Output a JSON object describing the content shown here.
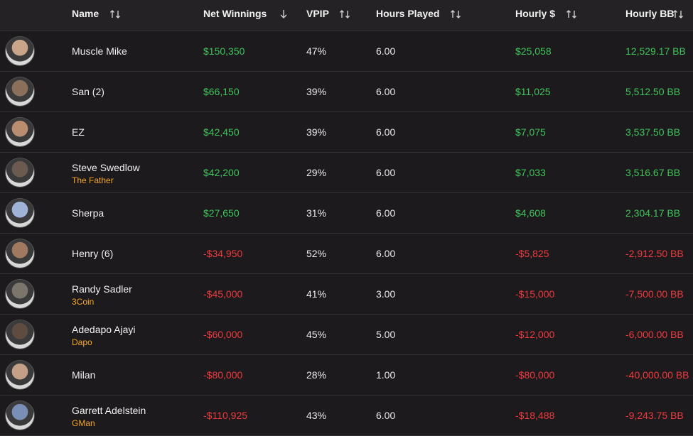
{
  "table": {
    "columns": [
      "Name",
      "Net Winnings",
      "VPIP",
      "Hours Played",
      "Hourly $",
      "Hourly BB"
    ],
    "rows": [
      {
        "name": "Muscle Mike",
        "net": "$150,350",
        "vpip": "47%",
        "hours": "6.00",
        "hourly": "$25,058",
        "hourly_bb": "12,529.17 BB",
        "positive": true
      },
      {
        "name": "San (2)",
        "net": "$66,150",
        "vpip": "39%",
        "hours": "6.00",
        "hourly": "$11,025",
        "hourly_bb": "5,512.50 BB",
        "positive": true
      },
      {
        "name": "EZ",
        "net": "$42,450",
        "vpip": "39%",
        "hours": "6.00",
        "hourly": "$7,075",
        "hourly_bb": "3,537.50 BB",
        "positive": true
      },
      {
        "name": "Steve Swedlow",
        "nickname": "The Father",
        "net": "$42,200",
        "vpip": "29%",
        "hours": "6.00",
        "hourly": "$7,033",
        "hourly_bb": "3,516.67 BB",
        "positive": true
      },
      {
        "name": "Sherpa",
        "net": "$27,650",
        "vpip": "31%",
        "hours": "6.00",
        "hourly": "$4,608",
        "hourly_bb": "2,304.17 BB",
        "positive": true
      },
      {
        "name": "Henry (6)",
        "net": "-$34,950",
        "vpip": "52%",
        "hours": "6.00",
        "hourly": "-$5,825",
        "hourly_bb": "-2,912.50 BB",
        "positive": false
      },
      {
        "name": "Randy Sadler",
        "nickname": "3Coin",
        "net": "-$45,000",
        "vpip": "41%",
        "hours": "3.00",
        "hourly": "-$15,000",
        "hourly_bb": "-7,500.00 BB",
        "positive": false
      },
      {
        "name": "Adedapo Ajayi",
        "nickname": "Dapo",
        "net": "-$60,000",
        "vpip": "45%",
        "hours": "5.00",
        "hourly": "-$12,000",
        "hourly_bb": "-6,000.00 BB",
        "positive": false
      },
      {
        "name": "Milan",
        "net": "-$80,000",
        "vpip": "28%",
        "hours": "1.00",
        "hourly": "-$80,000",
        "hourly_bb": "-40,000.00 BB",
        "positive": false
      },
      {
        "name": "Garrett Adelstein",
        "nickname": "GMan",
        "net": "-$110,925",
        "vpip": "43%",
        "hours": "6.00",
        "hourly": "-$18,488",
        "hourly_bb": "-9,243.75 BB",
        "positive": false
      }
    ]
  }
}
